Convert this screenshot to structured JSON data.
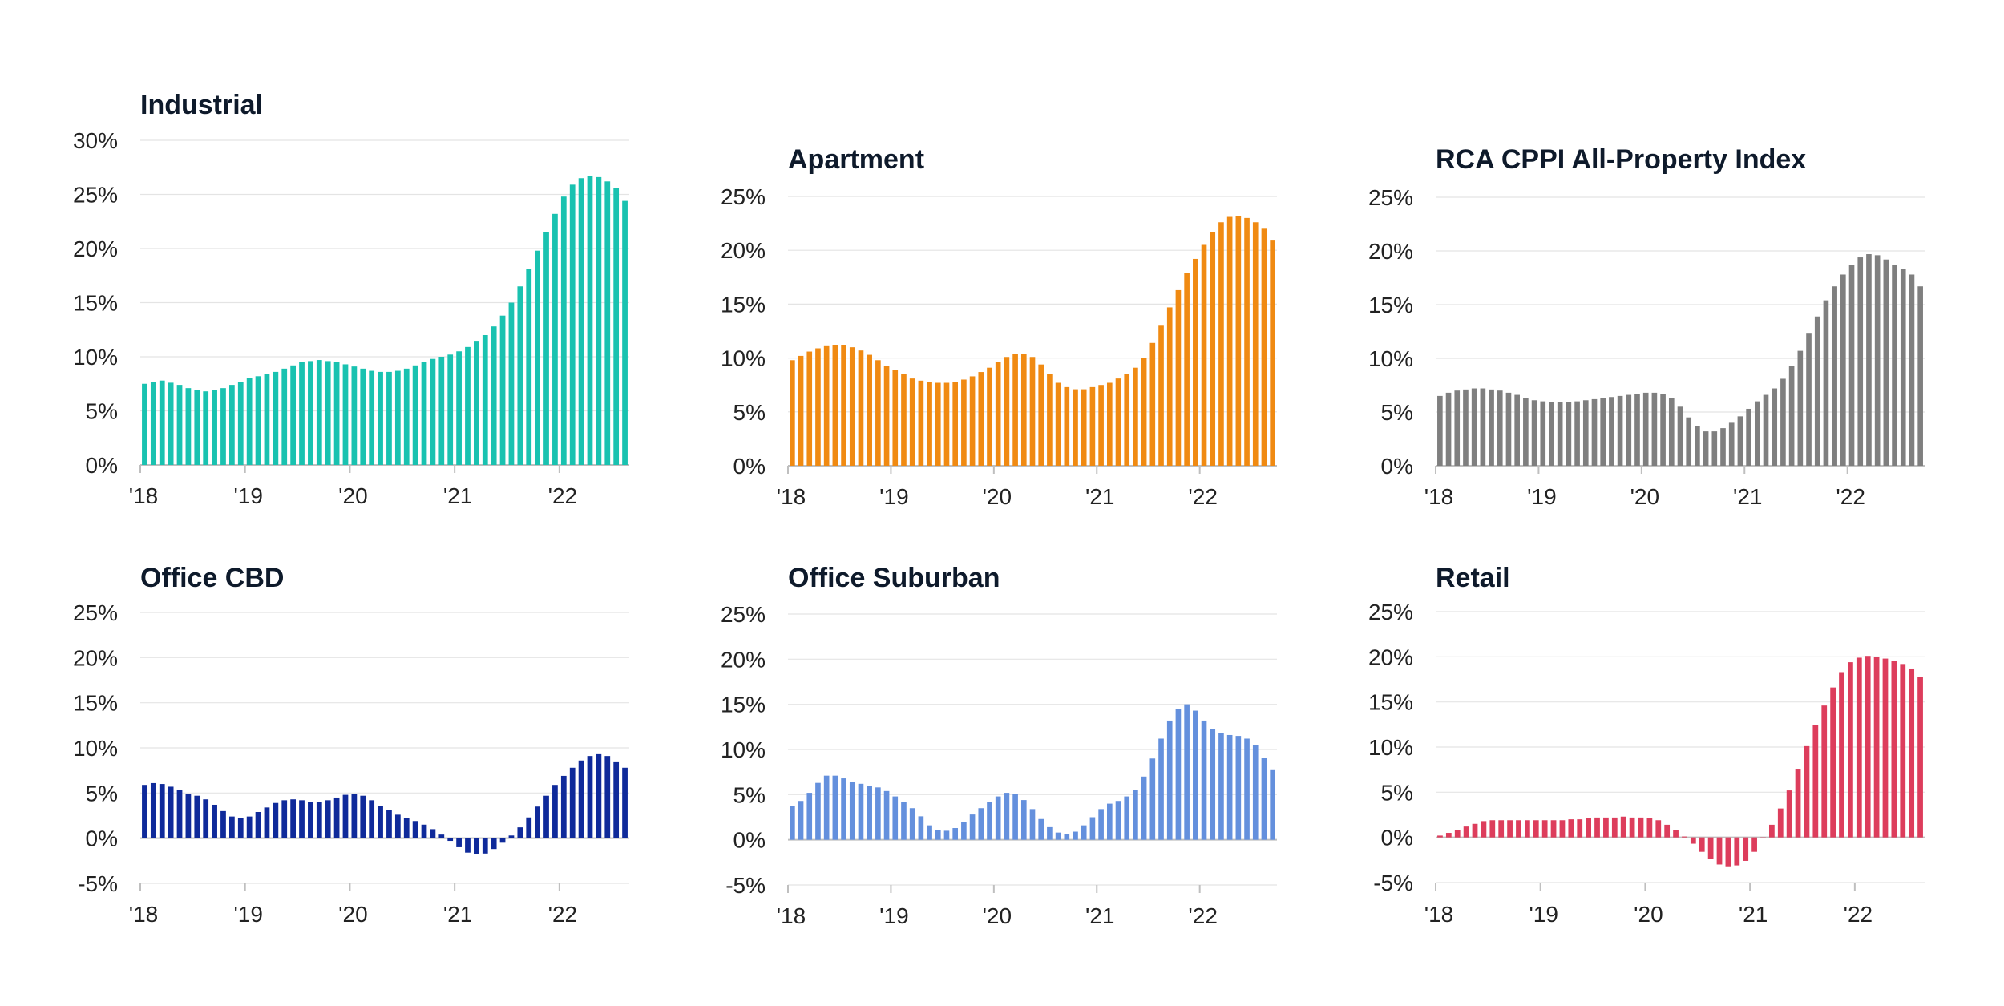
{
  "chart_data": [
    {
      "type": "bar",
      "title": "Industrial",
      "color": "#19c2b0",
      "ylim": [
        0,
        30
      ],
      "yticks": [
        0,
        5,
        10,
        15,
        20,
        25,
        30
      ],
      "ytick_labels": [
        "0%",
        "5%",
        "10%",
        "15%",
        "20%",
        "25%",
        "30%"
      ],
      "xticks": [
        "'18",
        "'19",
        "'20",
        "'21",
        "'22"
      ],
      "x_start": "2018-01",
      "frequency": "monthly",
      "grid": true,
      "values": [
        7.5,
        7.7,
        7.8,
        7.6,
        7.4,
        7.1,
        6.9,
        6.8,
        6.9,
        7.1,
        7.4,
        7.7,
        8.0,
        8.2,
        8.4,
        8.6,
        8.9,
        9.2,
        9.5,
        9.6,
        9.7,
        9.6,
        9.5,
        9.3,
        9.1,
        8.9,
        8.7,
        8.6,
        8.6,
        8.7,
        8.9,
        9.2,
        9.5,
        9.8,
        10.0,
        10.2,
        10.5,
        10.9,
        11.4,
        12.0,
        12.8,
        13.8,
        15.0,
        16.5,
        18.1,
        19.8,
        21.5,
        23.2,
        24.8,
        25.9,
        26.5,
        26.7,
        26.6,
        26.2,
        25.6,
        24.4
      ]
    },
    {
      "type": "bar",
      "title": "Apartment",
      "color": "#f08a12",
      "ylim": [
        0,
        25
      ],
      "yticks": [
        0,
        5,
        10,
        15,
        20,
        25
      ],
      "ytick_labels": [
        "0%",
        "5%",
        "10%",
        "15%",
        "20%",
        "25%"
      ],
      "xticks": [
        "'18",
        "'19",
        "'20",
        "'21",
        "'22"
      ],
      "x_start": "2018-01",
      "frequency": "monthly",
      "grid": true,
      "values": [
        9.8,
        10.2,
        10.6,
        10.9,
        11.1,
        11.2,
        11.2,
        11.0,
        10.7,
        10.3,
        9.8,
        9.3,
        8.9,
        8.5,
        8.1,
        7.9,
        7.8,
        7.7,
        7.7,
        7.8,
        8.0,
        8.3,
        8.7,
        9.1,
        9.6,
        10.1,
        10.4,
        10.4,
        10.1,
        9.4,
        8.5,
        7.7,
        7.3,
        7.1,
        7.1,
        7.3,
        7.5,
        7.7,
        8.1,
        8.5,
        9.1,
        10.0,
        11.4,
        13.0,
        14.7,
        16.3,
        17.9,
        19.2,
        20.5,
        21.7,
        22.6,
        23.1,
        23.2,
        23.0,
        22.6,
        22.0,
        20.9
      ]
    },
    {
      "type": "bar",
      "title": "RCA CPPI All-Property Index",
      "color": "#7f7f7f",
      "ylim": [
        0,
        25
      ],
      "yticks": [
        0,
        5,
        10,
        15,
        20,
        25
      ],
      "ytick_labels": [
        "0%",
        "5%",
        "10%",
        "15%",
        "20%",
        "25%"
      ],
      "xticks": [
        "'18",
        "'19",
        "'20",
        "'21",
        "'22"
      ],
      "x_start": "2018-01",
      "frequency": "monthly",
      "grid": true,
      "values": [
        6.5,
        6.8,
        7.0,
        7.1,
        7.2,
        7.2,
        7.1,
        7.0,
        6.8,
        6.6,
        6.3,
        6.1,
        6.0,
        5.9,
        5.9,
        5.9,
        6.0,
        6.1,
        6.2,
        6.3,
        6.4,
        6.5,
        6.6,
        6.7,
        6.8,
        6.8,
        6.7,
        6.3,
        5.5,
        4.5,
        3.7,
        3.2,
        3.2,
        3.5,
        4.0,
        4.6,
        5.3,
        6.0,
        6.6,
        7.2,
        8.1,
        9.3,
        10.7,
        12.3,
        13.9,
        15.4,
        16.7,
        17.8,
        18.7,
        19.4,
        19.7,
        19.6,
        19.2,
        18.7,
        18.3,
        17.8,
        16.7
      ]
    },
    {
      "type": "bar",
      "title": "Office CBD",
      "color": "#0f2a9a",
      "ylim": [
        -5,
        25
      ],
      "yticks": [
        -5,
        0,
        5,
        10,
        15,
        20,
        25
      ],
      "ytick_labels": [
        "-5%",
        "0%",
        "5%",
        "10%",
        "15%",
        "20%",
        "25%"
      ],
      "xticks": [
        "'18",
        "'19",
        "'20",
        "'21",
        "'22"
      ],
      "x_start": "2018-01",
      "frequency": "monthly",
      "grid": true,
      "values": [
        5.9,
        6.1,
        6.0,
        5.7,
        5.3,
        4.9,
        4.7,
        4.3,
        3.7,
        3.0,
        2.4,
        2.2,
        2.4,
        2.9,
        3.4,
        3.9,
        4.2,
        4.3,
        4.2,
        4.0,
        4.0,
        4.2,
        4.5,
        4.8,
        4.9,
        4.7,
        4.2,
        3.6,
        3.1,
        2.6,
        2.2,
        1.9,
        1.5,
        1.0,
        0.4,
        -0.3,
        -1.0,
        -1.6,
        -1.8,
        -1.7,
        -1.2,
        -0.5,
        0.3,
        1.2,
        2.3,
        3.5,
        4.7,
        5.9,
        6.9,
        7.8,
        8.6,
        9.1,
        9.3,
        9.1,
        8.5,
        7.8
      ]
    },
    {
      "type": "bar",
      "title": "Office Suburban",
      "color": "#6490dd",
      "ylim": [
        -5,
        25
      ],
      "yticks": [
        -5,
        0,
        5,
        10,
        15,
        20,
        25
      ],
      "ytick_labels": [
        "-5%",
        "0%",
        "5%",
        "10%",
        "15%",
        "20%",
        "25%"
      ],
      "xticks": [
        "'18",
        "'19",
        "'20",
        "'21",
        "'22"
      ],
      "x_start": "2018-01",
      "frequency": "monthly",
      "grid": true,
      "values": [
        3.7,
        4.3,
        5.2,
        6.3,
        7.1,
        7.1,
        6.8,
        6.4,
        6.2,
        6.0,
        5.8,
        5.4,
        4.8,
        4.2,
        3.5,
        2.6,
        1.6,
        1.1,
        1.0,
        1.3,
        2.0,
        2.8,
        3.5,
        4.2,
        4.8,
        5.2,
        5.1,
        4.4,
        3.4,
        2.3,
        1.4,
        0.8,
        0.6,
        0.9,
        1.6,
        2.5,
        3.4,
        4.0,
        4.3,
        4.8,
        5.5,
        7.0,
        9.0,
        11.2,
        13.2,
        14.5,
        15.0,
        14.3,
        13.2,
        12.3,
        11.8,
        11.6,
        11.5,
        11.2,
        10.5,
        9.1,
        7.8
      ]
    },
    {
      "type": "bar",
      "title": "Retail",
      "color": "#dd3d5c",
      "ylim": [
        -5,
        25
      ],
      "yticks": [
        -5,
        0,
        5,
        10,
        15,
        20,
        25
      ],
      "ytick_labels": [
        "-5%",
        "0%",
        "5%",
        "10%",
        "15%",
        "20%",
        "25%"
      ],
      "xticks": [
        "'18",
        "'19",
        "'20",
        "'21",
        "'22"
      ],
      "x_start": "2018-01",
      "frequency": "monthly",
      "grid": true,
      "values": [
        0.2,
        0.5,
        0.8,
        1.2,
        1.5,
        1.8,
        1.9,
        1.9,
        1.9,
        1.9,
        1.9,
        1.9,
        1.9,
        1.9,
        1.9,
        2.0,
        2.0,
        2.1,
        2.2,
        2.2,
        2.2,
        2.3,
        2.2,
        2.2,
        2.1,
        1.9,
        1.4,
        0.8,
        0.1,
        -0.7,
        -1.6,
        -2.4,
        -3.0,
        -3.2,
        -3.1,
        -2.6,
        -1.6,
        -0.1,
        1.4,
        3.2,
        5.2,
        7.6,
        10.1,
        12.4,
        14.6,
        16.6,
        18.3,
        19.4,
        19.9,
        20.1,
        20.0,
        19.8,
        19.5,
        19.2,
        18.7,
        17.8
      ]
    }
  ]
}
